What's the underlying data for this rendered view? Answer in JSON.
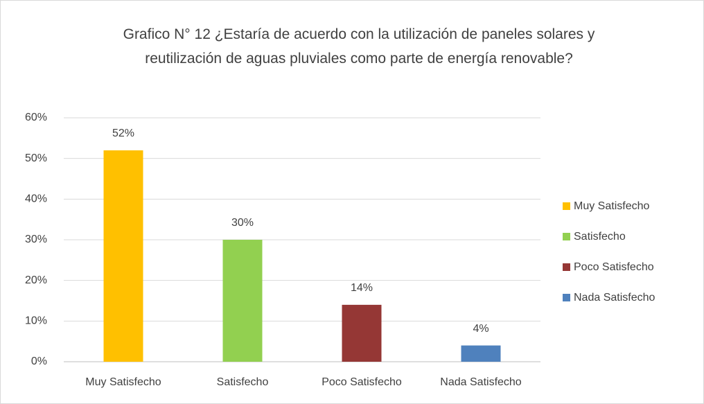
{
  "chart_data": {
    "type": "bar",
    "title": "Grafico N° 12 ¿Estaría de acuerdo con la utilización de paneles solares y reutilización de aguas pluviales como parte de energía renovable?",
    "categories": [
      "Muy Satisfecho",
      "Satisfecho",
      "Poco Satisfecho",
      "Nada Satisfecho"
    ],
    "values": [
      52,
      30,
      14,
      4
    ],
    "value_labels": [
      "52%",
      "30%",
      "14%",
      "4%"
    ],
    "colors": [
      "#ffc000",
      "#92d050",
      "#953735",
      "#4f81bd"
    ],
    "ylim": [
      0,
      60
    ],
    "yticks": [
      {
        "value": 0,
        "label": "0%"
      },
      {
        "value": 10,
        "label": "10%"
      },
      {
        "value": 20,
        "label": "20%"
      },
      {
        "value": 30,
        "label": "30%"
      },
      {
        "value": 40,
        "label": "40%"
      },
      {
        "value": 50,
        "label": "50%"
      },
      {
        "value": 60,
        "label": "60%"
      }
    ],
    "grid": true,
    "legend": "right"
  }
}
